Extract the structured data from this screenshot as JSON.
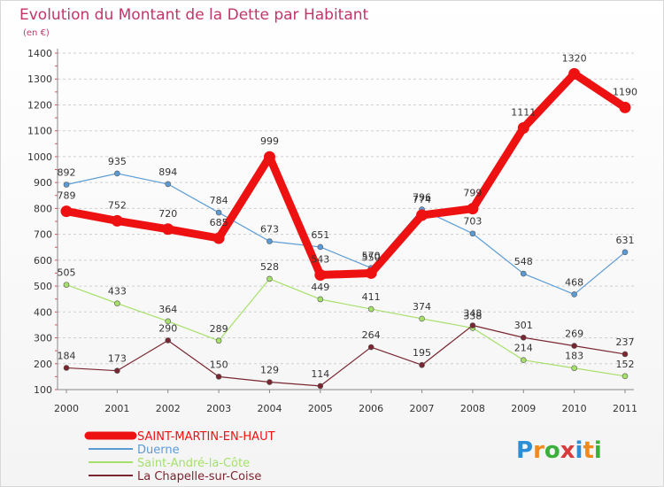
{
  "chart_data": {
    "type": "line",
    "title": "Evolution du Montant de la Dette par Habitant",
    "subtitle": "(en €)",
    "x": [
      "2000",
      "2001",
      "2002",
      "2003",
      "2004",
      "2005",
      "2006",
      "2007",
      "2008",
      "2009",
      "2010",
      "2011"
    ],
    "y_ticks": [
      "100",
      "200",
      "300",
      "400",
      "500",
      "600",
      "700",
      "800",
      "900",
      "1000",
      "1100",
      "1200",
      "1300",
      "1400"
    ],
    "ylim": [
      100,
      1400
    ],
    "grid": "horizontal-dashed",
    "legend_position": "bottom-left",
    "series": [
      {
        "name": "Duerne",
        "color": "#5b9bd5",
        "width": 1.2,
        "marker": 3,
        "values": [
          892,
          935,
          894,
          784,
          673,
          651,
          570,
          796,
          703,
          548,
          468,
          631
        ]
      },
      {
        "name": "Saint-André-la-Côte",
        "color": "#a6e06a",
        "width": 1.2,
        "marker": 3,
        "values": [
          505,
          433,
          364,
          289,
          528,
          449,
          411,
          374,
          338,
          214,
          183,
          152
        ]
      },
      {
        "name": "La Chapelle-sur-Coise",
        "color": "#7a2630",
        "width": 1.2,
        "marker": 3,
        "values": [
          184,
          173,
          290,
          150,
          129,
          114,
          264,
          195,
          348,
          301,
          269,
          237
        ]
      },
      {
        "name": "SAINT-MARTIN-EN-HAUT",
        "color": "#ee1111",
        "width": 9,
        "marker": 6.5,
        "values": [
          789,
          752,
          720,
          685,
          999,
          543,
          550,
          774,
          799,
          1111,
          1320,
          1190
        ]
      }
    ],
    "legend": [
      {
        "name": "SAINT-MARTIN-EN-HAUT",
        "color": "#ee1111"
      },
      {
        "name": "Duerne",
        "color": "#5b9bd5"
      },
      {
        "name": "Saint-André-la-Côte",
        "color": "#a6e06a"
      },
      {
        "name": "La Chapelle-sur-Coise",
        "color": "#7a2630"
      }
    ]
  },
  "logo": {
    "text": "Proxiti",
    "colors": [
      "#2a8fd6",
      "#f08a1c",
      "#3cae3c",
      "#d93a3a"
    ]
  }
}
